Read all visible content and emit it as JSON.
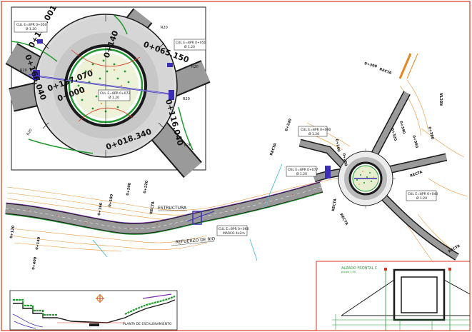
{
  "inset": {
    "chainages": [
      "0+150.001",
      "0+065.150",
      "0+166.040",
      "0+157.070",
      "0+000",
      "0+140",
      "0+018.340",
      "0+116.040"
    ],
    "radius_labels": [
      "R20",
      "R20",
      "R20",
      "R20",
      "R20",
      "R20"
    ],
    "callouts": [
      {
        "line1": "CUL E=8PR 0+050",
        "line2": "Ø 1.20"
      },
      {
        "line1": "CUL E=8PR 0+050",
        "line2": "Ø 1.20"
      },
      {
        "line1": "CUL E=8PR 0+072",
        "line2": "Ø 1.20"
      }
    ]
  },
  "main": {
    "structure_label": "ESTRUCTURA",
    "reforzado_label": "REFUERZO DE RIO",
    "callouts": [
      {
        "line1": "CUL E=8PR 0+090",
        "line2": "Ø 1.20"
      },
      {
        "line1": "CUL E=8PR 0+077",
        "line2": "Ø 1.20"
      },
      {
        "line1": "CUL E=8PR 0+040",
        "line2": "Ø 1.20"
      },
      {
        "line1": "CUL E=8PR 0+068",
        "line2": "MARCO 4x2m"
      }
    ],
    "recta_labels": [
      "RECTA",
      "RECTA",
      "RECTA",
      "RECTA",
      "RECTA",
      "RECTA",
      "RECTA",
      "RECTA"
    ],
    "station_labels": [
      "0+120",
      "0+140",
      "0+160",
      "0+180",
      "0+200",
      "0+220",
      "0+240",
      "0+260",
      "0+280",
      "0+300",
      "0+320",
      "0+340",
      "0+360",
      "0+380",
      "0+400"
    ]
  },
  "elevation": {
    "title": "ALZADO FRONTAL C",
    "subtitle": "escala 1:50"
  },
  "profile": {
    "note": "PLANTA DE ESCALONAMIENTO"
  },
  "colors": {
    "frame": "#d9361f",
    "road": "#9a9a9a",
    "center_island": "#1a1a1a",
    "curb_green": "#1f9a2e",
    "contour_orange": "#e8861d",
    "accent_blue": "#3a2fb5",
    "accent_purple": "#7a2fb5"
  }
}
